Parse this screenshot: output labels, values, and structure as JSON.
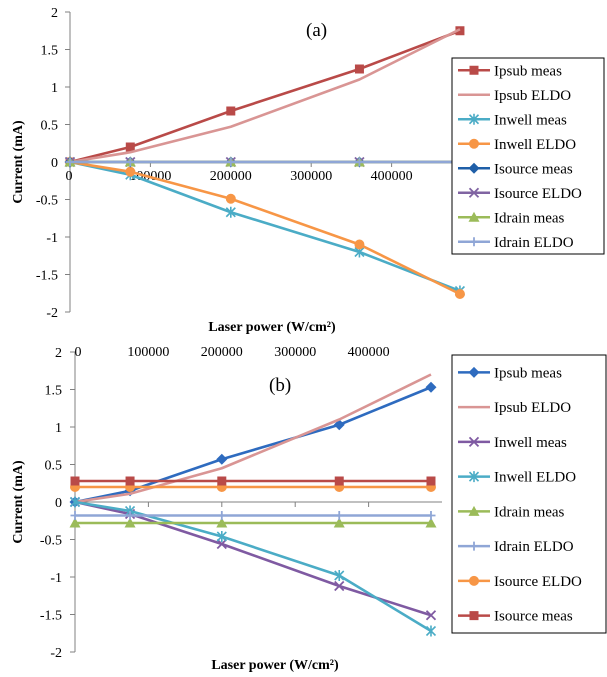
{
  "chart_data": [
    {
      "type": "line",
      "panel_label": "(a)",
      "xlabel": "Laser power (W/cm²)",
      "ylabel": "Current (mA)",
      "ylim": [
        -2,
        2
      ],
      "xlim": [
        0,
        500000
      ],
      "yticks": [
        "2",
        "1.5",
        "1",
        "0.5",
        "0",
        "-0.5",
        "-1",
        "-1.5",
        "-2"
      ],
      "xticks": [
        "0",
        "100000",
        "200000",
        "300000",
        "400000"
      ],
      "grid": false,
      "legend_position": "right",
      "x": [
        0,
        75000,
        200000,
        360000,
        485000
      ],
      "series": [
        {
          "name": "Ipsub meas",
          "color": "#b94a48",
          "marker": "square",
          "values": [
            0,
            0.2,
            0.68,
            1.24,
            1.75
          ]
        },
        {
          "name": "Ipsub ELDO",
          "color": "#d99594",
          "marker": "none",
          "values": [
            0,
            0.13,
            0.47,
            1.1,
            1.77
          ]
        },
        {
          "name": "Inwell meas",
          "color": "#4bacc6",
          "marker": "star",
          "values": [
            0,
            -0.17,
            -0.67,
            -1.2,
            -1.72
          ]
        },
        {
          "name": "Inwell ELDO",
          "color": "#f79646",
          "marker": "circle",
          "values": [
            0,
            -0.13,
            -0.49,
            -1.1,
            -1.76
          ]
        },
        {
          "name": "Isource meas",
          "color": "#1f5fa8",
          "marker": "diamond",
          "values": [
            0,
            0,
            0,
            0,
            0
          ]
        },
        {
          "name": "Isource ELDO",
          "color": "#8064a2",
          "marker": "x",
          "values": [
            0,
            0,
            0,
            0,
            0
          ]
        },
        {
          "name": "Idrain meas",
          "color": "#9bbb59",
          "marker": "triangle",
          "values": [
            0,
            0,
            0,
            0,
            0
          ]
        },
        {
          "name": "Idrain ELDO",
          "color": "#8fa6d6",
          "marker": "plus",
          "values": [
            0,
            0,
            0,
            0,
            0
          ]
        }
      ]
    },
    {
      "type": "line",
      "panel_label": "(b)",
      "xlabel": "Laser power (W/cm²)",
      "ylabel": "Current (mA)",
      "ylim": [
        -2,
        2
      ],
      "xlim": [
        0,
        500000
      ],
      "yticks": [
        "2",
        "1.5",
        "1",
        "0.5",
        "0",
        "-0.5",
        "-1",
        "-1.5",
        "-2"
      ],
      "xticks": [
        "0",
        "100000",
        "200000",
        "300000",
        "400000"
      ],
      "grid": false,
      "legend_position": "right",
      "x": [
        0,
        75000,
        200000,
        360000,
        485000
      ],
      "series": [
        {
          "name": "Ipsub meas",
          "color": "#2e6bbf",
          "marker": "diamond",
          "values": [
            0,
            0.15,
            0.57,
            1.03,
            1.53
          ]
        },
        {
          "name": "Ipsub ELDO",
          "color": "#d99594",
          "marker": "none",
          "values": [
            0,
            0.11,
            0.45,
            1.1,
            1.7
          ]
        },
        {
          "name": "Inwell meas",
          "color": "#7f5aa2",
          "marker": "x",
          "values": [
            0,
            -0.16,
            -0.56,
            -1.12,
            -1.51
          ]
        },
        {
          "name": "Inwell ELDO",
          "color": "#4bacc6",
          "marker": "star",
          "values": [
            0,
            -0.12,
            -0.46,
            -0.98,
            -1.72
          ]
        },
        {
          "name": "Idrain meas",
          "color": "#9bbb59",
          "marker": "triangle",
          "values": [
            -0.28,
            -0.28,
            -0.28,
            -0.28,
            -0.28
          ]
        },
        {
          "name": "Idrain ELDO",
          "color": "#8fa6d6",
          "marker": "plus",
          "values": [
            -0.18,
            -0.18,
            -0.18,
            -0.18,
            -0.18
          ]
        },
        {
          "name": "Isource ELDO",
          "color": "#f79646",
          "marker": "circle",
          "values": [
            0.2,
            0.2,
            0.2,
            0.2,
            0.2
          ]
        },
        {
          "name": "Isource meas",
          "color": "#b94a48",
          "marker": "square",
          "values": [
            0.28,
            0.28,
            0.28,
            0.28,
            0.28
          ]
        }
      ]
    }
  ]
}
